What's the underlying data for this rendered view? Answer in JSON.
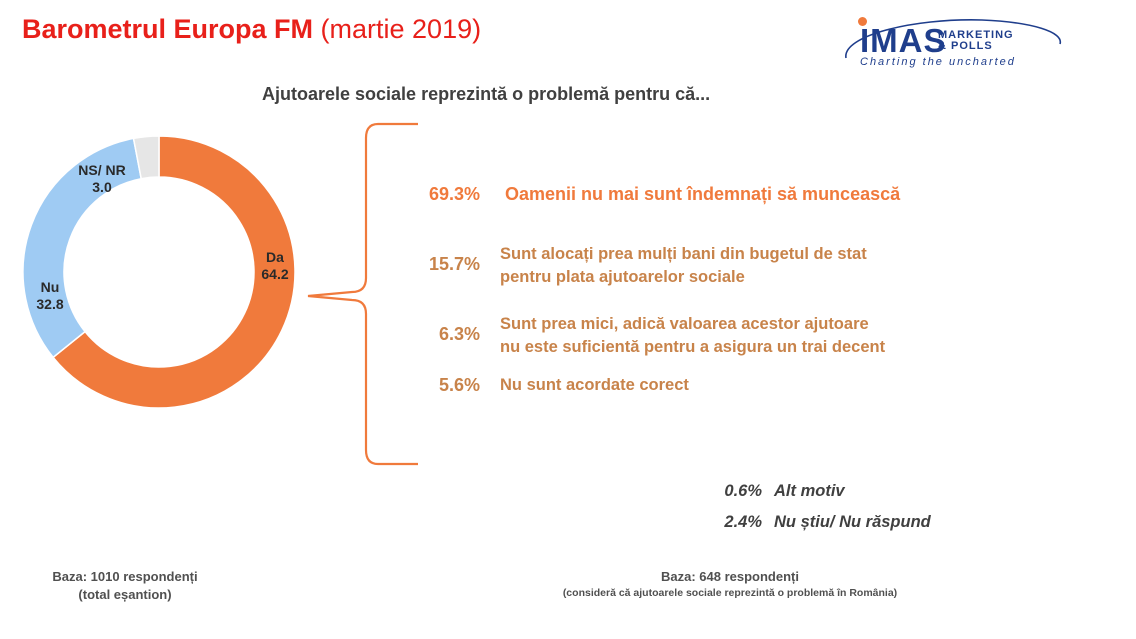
{
  "header": {
    "title_bold": "Barometrul Europa FM",
    "title_rest": " (martie 2019)"
  },
  "logo": {
    "main": "IMAS",
    "line1": "MARKETING",
    "line2": "& POLLS",
    "tagline": "Charting the uncharted"
  },
  "question": "Ajutoarele sociale reprezintă o problemă pentru că...",
  "colors": {
    "orange": "#f07a3c",
    "blue": "#9fcbf3",
    "gray": "#e6e6e6",
    "reason_main": "#f07a3c",
    "reason_other": "#c8834a",
    "title_red": "#e8201a"
  },
  "chart_data": [
    {
      "type": "pie",
      "donut": true,
      "slices": [
        {
          "name": "Da",
          "value": 64.2,
          "label": "Da",
          "value_label": "64.2",
          "color": "#f07a3c"
        },
        {
          "name": "Nu",
          "value": 32.8,
          "label": "Nu",
          "value_label": "32.8",
          "color": "#9fcbf3"
        },
        {
          "name": "NS/ NR",
          "value": 3.0,
          "label": "NS/ NR",
          "value_label": "3.0",
          "color": "#e6e6e6"
        }
      ]
    },
    {
      "type": "table",
      "rows": [
        {
          "pct": "69.3%",
          "value": 69.3,
          "text": [
            "Oamenii nu mai sunt îndemnați să muncească"
          ]
        },
        {
          "pct": "15.7%",
          "value": 15.7,
          "text": [
            "Sunt alocați prea mulți bani din bugetul de stat",
            "pentru plata ajutoarelor sociale"
          ]
        },
        {
          "pct": "6.3%",
          "value": 6.3,
          "text": [
            "Sunt prea mici, adică valoarea acestor ajutoare",
            "nu este suficientă pentru a asigura un trai decent"
          ]
        },
        {
          "pct": "5.6%",
          "value": 5.6,
          "text": [
            "Nu sunt acordate corect"
          ]
        },
        {
          "pct": "0.6%",
          "value": 0.6,
          "text": [
            "Alt motiv"
          ]
        },
        {
          "pct": "2.4%",
          "value": 2.4,
          "text": [
            "Nu știu/ Nu răspund"
          ]
        }
      ]
    }
  ],
  "base_left": {
    "line1": "Baza: 1010 respondenți",
    "line2": "(total eșantion)"
  },
  "base_right": {
    "line1": "Baza: 648 respondenți",
    "line2": "(consideră că ajutoarele sociale reprezintă o problemă în România)"
  }
}
